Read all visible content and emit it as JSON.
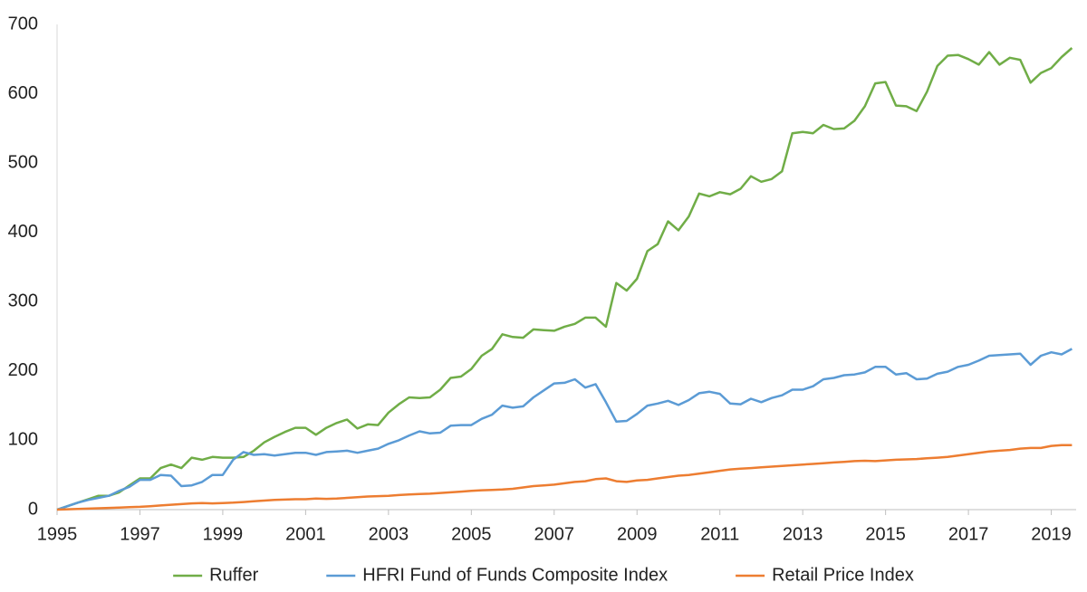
{
  "chart_data": {
    "type": "line",
    "x": [
      1995,
      1995.25,
      1995.5,
      1995.75,
      1996,
      1996.25,
      1996.5,
      1996.75,
      1997,
      1997.25,
      1997.5,
      1997.75,
      1998,
      1998.25,
      1998.5,
      1998.75,
      1999,
      1999.25,
      1999.5,
      1999.75,
      2000,
      2000.25,
      2000.5,
      2000.75,
      2001,
      2001.25,
      2001.5,
      2001.75,
      2002,
      2002.25,
      2002.5,
      2002.75,
      2003,
      2003.25,
      2003.5,
      2003.75,
      2004,
      2004.25,
      2004.5,
      2004.75,
      2005,
      2005.25,
      2005.5,
      2005.75,
      2006,
      2006.25,
      2006.5,
      2006.75,
      2007,
      2007.25,
      2007.5,
      2007.75,
      2008,
      2008.25,
      2008.5,
      2008.75,
      2009,
      2009.25,
      2009.5,
      2009.75,
      2010,
      2010.25,
      2010.5,
      2010.75,
      2011,
      2011.25,
      2011.5,
      2011.75,
      2012,
      2012.25,
      2012.5,
      2012.75,
      2013,
      2013.25,
      2013.5,
      2013.75,
      2014,
      2014.25,
      2014.5,
      2014.75,
      2015,
      2015.25,
      2015.5,
      2015.75,
      2016,
      2016.25,
      2016.5,
      2016.75,
      2017,
      2017.25,
      2017.5,
      2017.75,
      2018,
      2018.25,
      2018.5,
      2018.75,
      2019,
      2019.25,
      2019.5
    ],
    "series": [
      {
        "name": "Ruffer",
        "color": "#70ad47",
        "values": [
          0,
          5,
          10,
          15,
          20,
          20,
          25,
          35,
          45,
          45,
          60,
          65,
          60,
          75,
          72,
          76,
          75,
          75,
          76,
          85,
          97,
          105,
          112,
          118,
          118,
          108,
          118,
          125,
          130,
          117,
          123,
          122,
          140,
          152,
          162,
          161,
          162,
          173,
          190,
          192,
          203,
          222,
          232,
          253,
          249,
          248,
          260,
          259,
          258,
          264,
          268,
          277,
          277,
          264,
          327,
          316,
          333,
          373,
          383,
          416,
          403,
          423,
          456,
          452,
          458,
          455,
          463,
          481,
          473,
          477,
          488,
          543,
          545,
          543,
          555,
          549,
          550,
          561,
          582,
          615,
          617,
          583,
          582,
          575,
          603,
          640,
          655,
          656,
          650,
          642,
          660,
          642,
          652,
          649,
          616,
          630,
          637,
          653,
          666
        ]
      },
      {
        "name": "HFRI Fund of Funds Composite Index",
        "color": "#5b9bd5",
        "values": [
          0,
          5,
          10,
          14,
          17,
          20,
          27,
          33,
          43,
          43,
          50,
          49,
          34,
          35,
          40,
          50,
          50,
          72,
          83,
          79,
          80,
          78,
          80,
          82,
          82,
          79,
          83,
          84,
          85,
          82,
          85,
          88,
          95,
          100,
          107,
          113,
          110,
          111,
          121,
          122,
          122,
          131,
          137,
          150,
          147,
          149,
          162,
          172,
          182,
          183,
          188,
          176,
          181,
          155,
          127,
          128,
          138,
          150,
          153,
          157,
          151,
          158,
          168,
          170,
          167,
          153,
          152,
          160,
          155,
          161,
          165,
          173,
          173,
          178,
          188,
          190,
          194,
          195,
          198,
          206,
          206,
          195,
          197,
          188,
          189,
          196,
          199,
          206,
          209,
          215,
          222,
          223,
          224,
          225,
          209,
          222,
          227,
          224,
          232
        ]
      },
      {
        "name": "Retail Price Index",
        "color": "#ed7d31",
        "values": [
          0,
          0.5,
          1,
          1.5,
          2,
          2.5,
          3,
          3.5,
          4,
          5,
          6,
          7,
          8,
          9,
          9.5,
          9,
          9.5,
          10,
          11,
          12,
          13,
          14,
          14.5,
          15,
          15,
          16,
          15.5,
          16,
          17,
          18,
          19,
          19.5,
          20,
          21,
          22,
          22.5,
          23,
          24,
          25,
          26,
          27,
          28,
          28.5,
          29,
          30,
          32,
          34,
          35,
          36,
          38,
          40,
          41,
          44,
          45,
          41,
          40,
          42,
          43,
          45,
          47,
          49,
          50,
          52,
          54,
          56,
          58,
          59,
          60,
          61,
          62,
          63,
          64,
          65,
          66,
          67,
          68,
          69,
          70,
          70.5,
          70,
          71,
          72,
          72.5,
          73,
          74,
          75,
          76,
          78,
          80,
          82,
          84,
          85,
          86,
          88,
          89,
          89,
          92,
          93,
          93
        ]
      }
    ],
    "xlim": [
      1995,
      2019.6
    ],
    "xticks": [
      1995,
      1997,
      1999,
      2001,
      2003,
      2005,
      2007,
      2009,
      2011,
      2013,
      2015,
      2017,
      2019
    ],
    "ylim": [
      0,
      700
    ],
    "yticks": [
      0,
      100,
      200,
      300,
      400,
      500,
      600,
      700
    ],
    "grid": false,
    "legend": "bottom"
  }
}
